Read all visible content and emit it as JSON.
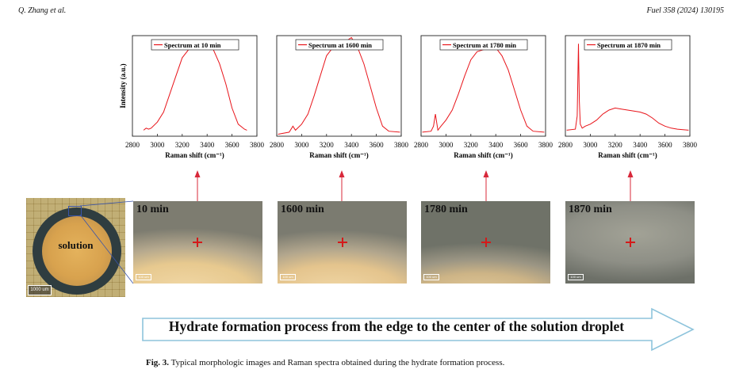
{
  "header": {
    "left": "Q. Zhang et al.",
    "right": "Fuel 358 (2024) 130195"
  },
  "chart_data": [
    {
      "type": "line",
      "legend": "Spectrum at 10 min",
      "xlabel": "Raman shift (cm⁻¹)",
      "ylabel": "Intensity (a.u.)",
      "xlim": [
        2800,
        3800
      ],
      "ylim": [
        0,
        1
      ],
      "x": [
        2890,
        2910,
        2930,
        2950,
        3000,
        3050,
        3100,
        3150,
        3200,
        3250,
        3300,
        3350,
        3400,
        3450,
        3500,
        3550,
        3600,
        3650,
        3700,
        3720
      ],
      "y": [
        0.06,
        0.08,
        0.07,
        0.08,
        0.14,
        0.24,
        0.42,
        0.6,
        0.78,
        0.86,
        0.89,
        0.92,
        0.95,
        0.86,
        0.72,
        0.52,
        0.28,
        0.12,
        0.07,
        0.06
      ]
    },
    {
      "type": "line",
      "legend": "Spectrum at 1600 min",
      "xlabel": "Raman shift (cm⁻¹)",
      "ylabel": "",
      "xlim": [
        2800,
        3800
      ],
      "ylim": [
        0,
        1
      ],
      "x": [
        2810,
        2900,
        2930,
        2950,
        3000,
        3050,
        3100,
        3150,
        3200,
        3250,
        3300,
        3350,
        3400,
        3450,
        3500,
        3550,
        3600,
        3650,
        3700,
        3790
      ],
      "y": [
        0.02,
        0.04,
        0.1,
        0.06,
        0.12,
        0.22,
        0.4,
        0.6,
        0.8,
        0.88,
        0.92,
        0.94,
        0.98,
        0.88,
        0.72,
        0.5,
        0.28,
        0.1,
        0.05,
        0.04
      ]
    },
    {
      "type": "line",
      "legend": "Spectrum at 1780 min",
      "xlabel": "Raman shift (cm⁻¹)",
      "ylabel": "",
      "xlim": [
        2800,
        3800
      ],
      "ylim": [
        0,
        1
      ],
      "x": [
        2810,
        2880,
        2900,
        2915,
        2935,
        2960,
        3000,
        3050,
        3100,
        3150,
        3200,
        3250,
        3300,
        3350,
        3400,
        3450,
        3500,
        3550,
        3600,
        3650,
        3700,
        3790
      ],
      "y": [
        0.04,
        0.05,
        0.1,
        0.22,
        0.06,
        0.1,
        0.16,
        0.26,
        0.42,
        0.6,
        0.76,
        0.84,
        0.86,
        0.88,
        0.88,
        0.8,
        0.66,
        0.46,
        0.26,
        0.1,
        0.05,
        0.04
      ]
    },
    {
      "type": "line",
      "legend": "Spectrum at 1870 min",
      "xlabel": "Raman shift (cm⁻¹)",
      "ylabel": "",
      "xlim": [
        2800,
        3800
      ],
      "ylim": [
        0,
        1
      ],
      "x": [
        2810,
        2880,
        2895,
        2905,
        2912,
        2920,
        2935,
        2960,
        3000,
        3050,
        3100,
        3150,
        3200,
        3250,
        3300,
        3350,
        3400,
        3450,
        3500,
        3550,
        3600,
        3650,
        3700,
        3790
      ],
      "y": [
        0.06,
        0.07,
        0.2,
        0.92,
        0.35,
        0.12,
        0.08,
        0.1,
        0.12,
        0.16,
        0.22,
        0.26,
        0.28,
        0.27,
        0.26,
        0.25,
        0.24,
        0.22,
        0.18,
        0.13,
        0.1,
        0.08,
        0.07,
        0.06
      ]
    }
  ],
  "ticks": [
    "2800",
    "3000",
    "3200",
    "3400",
    "3600",
    "3800"
  ],
  "micrographs": [
    {
      "time": "10 min",
      "scale": "100 um"
    },
    {
      "time": "1600 min",
      "scale": "100 um"
    },
    {
      "time": "1780 min",
      "scale": "100 um"
    },
    {
      "time": "1870 min",
      "scale": "100 um"
    }
  ],
  "droplet": {
    "label": "solution",
    "scale": "1000 um"
  },
  "banner": "Hydrate formation process from the edge to the center of the solution droplet",
  "caption": {
    "label": "Fig. 3.",
    "text": "Typical morphologic images and Raman spectra obtained during the hydrate formation process."
  },
  "colors": {
    "spectrum": "#e8141a",
    "arrow": "#d8283a",
    "banner_stroke": "#8ec4dc"
  }
}
